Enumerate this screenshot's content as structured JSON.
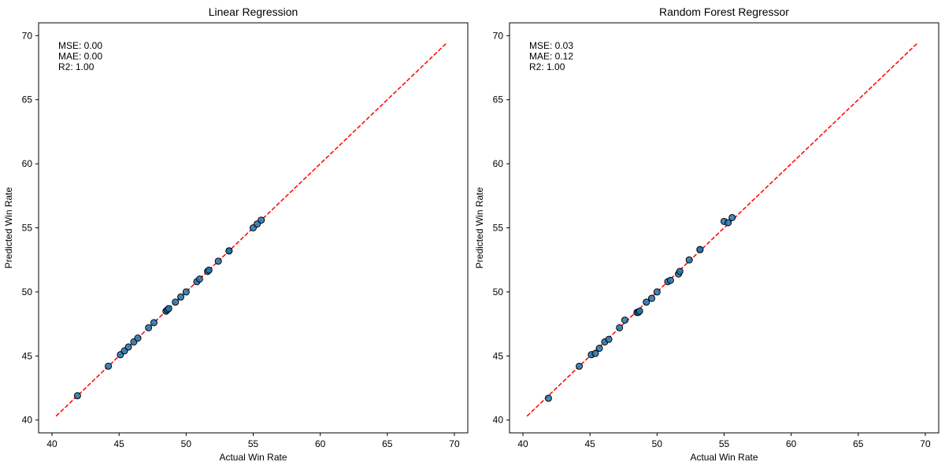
{
  "chart_data": [
    {
      "type": "scatter",
      "title": "Linear Regression",
      "xlabel": "Actual Win Rate",
      "ylabel": "Predicted Win Rate",
      "xlim": [
        39,
        71
      ],
      "ylim": [
        39,
        71
      ],
      "xticks": [
        "40",
        "45",
        "50",
        "55",
        "60",
        "65",
        "70"
      ],
      "yticks": [
        "40",
        "45",
        "50",
        "55",
        "60",
        "65",
        "70"
      ],
      "metrics": [
        "MSE: 0.00",
        "MAE: 0.00",
        "R2: 1.00"
      ],
      "reference_line": {
        "from": [
          40.3,
          40.3
        ],
        "to": [
          69.4,
          69.4
        ],
        "color": "#ff0000",
        "style": "dashed"
      },
      "marker_color": "#1f77b4",
      "x": [
        41.9,
        44.2,
        45.1,
        45.4,
        45.7,
        46.1,
        46.4,
        47.2,
        47.6,
        48.5,
        48.6,
        48.7,
        49.2,
        49.6,
        50.0,
        50.8,
        51.0,
        51.6,
        51.7,
        52.4,
        53.2,
        53.2,
        55.0,
        55.3,
        55.6
      ],
      "y": [
        41.9,
        44.2,
        45.1,
        45.4,
        45.7,
        46.1,
        46.4,
        47.2,
        47.6,
        48.5,
        48.6,
        48.7,
        49.2,
        49.6,
        50.0,
        50.8,
        51.0,
        51.6,
        51.7,
        52.4,
        53.2,
        53.2,
        55.0,
        55.3,
        55.6
      ]
    },
    {
      "type": "scatter",
      "title": "Random Forest Regressor",
      "xlabel": "Actual Win Rate",
      "ylabel": "Predicted Win Rate",
      "xlim": [
        39,
        71
      ],
      "ylim": [
        39,
        71
      ],
      "xticks": [
        "40",
        "45",
        "50",
        "55",
        "60",
        "65",
        "70"
      ],
      "yticks": [
        "40",
        "45",
        "50",
        "55",
        "60",
        "65",
        "70"
      ],
      "metrics": [
        "MSE: 0.03",
        "MAE: 0.12",
        "R2: 1.00"
      ],
      "reference_line": {
        "from": [
          40.3,
          40.3
        ],
        "to": [
          69.4,
          69.4
        ],
        "color": "#ff0000",
        "style": "dashed"
      },
      "marker_color": "#1f77b4",
      "x": [
        41.9,
        44.2,
        45.1,
        45.4,
        45.7,
        46.1,
        46.4,
        47.2,
        47.6,
        48.5,
        48.6,
        48.7,
        49.2,
        49.6,
        50.0,
        50.8,
        51.0,
        51.6,
        51.7,
        52.4,
        53.2,
        53.2,
        55.0,
        55.3,
        55.6
      ],
      "y": [
        41.7,
        44.2,
        45.1,
        45.2,
        45.6,
        46.1,
        46.3,
        47.2,
        47.8,
        48.4,
        48.4,
        48.5,
        49.2,
        49.5,
        50.0,
        50.8,
        50.9,
        51.4,
        51.6,
        52.5,
        53.3,
        53.3,
        55.5,
        55.4,
        55.8
      ]
    }
  ]
}
